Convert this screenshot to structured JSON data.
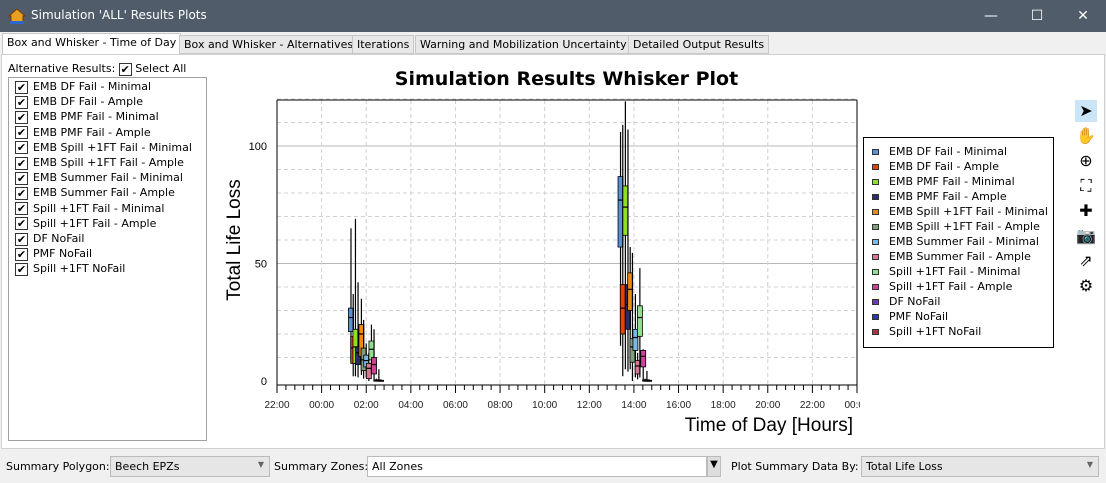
{
  "window": {
    "title": "Simulation 'ALL' Results Plots",
    "minimize": "—",
    "maximize": "☐",
    "close": "✕"
  },
  "tabs": [
    {
      "label": "Box and Whisker - Time of Day",
      "active": true
    },
    {
      "label": "Box and Whisker - Alternatives"
    },
    {
      "label": "Iterations"
    },
    {
      "label": "Warning and Mobilization Uncertainty"
    },
    {
      "label": "Detailed Output Results"
    }
  ],
  "left": {
    "label": "Alternative Results:",
    "select_all": "Select All",
    "items": [
      "EMB DF Fail - Minimal",
      "EMB DF Fail - Ample",
      "EMB PMF Fail - Minimal",
      "EMB PMF Fail - Ample",
      "EMB Spill +1FT Fail - Minimal",
      "EMB Spill +1FT Fail - Ample",
      "EMB Summer Fail - Minimal",
      "EMB Summer Fail - Ample",
      "Spill +1FT Fail - Minimal",
      "Spill +1FT Fail - Ample",
      "DF NoFail",
      "PMF NoFail",
      "Spill +1FT NoFail"
    ]
  },
  "toolbar": {
    "icons": [
      "pointer-icon",
      "pan-hand-icon",
      "zoom-in-icon",
      "zoom-extents-icon",
      "crosshair-plus-icon",
      "camera-icon",
      "export-icon",
      "settings-gear-icon"
    ],
    "glyphs": [
      "➤",
      "✋",
      "⊕",
      "⛶",
      "✚",
      "📷",
      "⇗",
      "⚙"
    ]
  },
  "bottom": {
    "polygon_label": "Summary Polygon:",
    "polygon_value": "Beech EPZs",
    "zones_label": "Summary Zones:",
    "zones_value": "All Zones",
    "plotby_label": "Plot Summary Data By:",
    "plotby_value": "Total Life Loss"
  },
  "chart_data": {
    "type": "box",
    "title": "Simulation Results Whisker Plot",
    "xlabel": "Time of Day [Hours]",
    "ylabel": "Total Life Loss",
    "xlim": [
      "22:00",
      "00:00 (+1 day)"
    ],
    "xticks": [
      "22:00",
      "00:00",
      "02:00",
      "04:00",
      "06:00",
      "08:00",
      "10:00",
      "12:00",
      "14:00",
      "16:00",
      "18:00",
      "20:00",
      "22:00",
      "00:00"
    ],
    "ylim": [
      0,
      120
    ],
    "yticks": [
      0,
      50,
      100
    ],
    "grid": true,
    "legend": "right",
    "series": [
      {
        "name": "EMB DF Fail - Minimal",
        "color": "#5b8fd6",
        "boxes": [
          {
            "time": "01:19",
            "min": 9,
            "q1": 21,
            "median": 27,
            "q3": 31,
            "max": 65
          },
          {
            "time": "13:24",
            "min": 15,
            "q1": 57,
            "median": 77,
            "q3": 87,
            "max": 106
          }
        ]
      },
      {
        "name": "EMB DF Fail - Ample",
        "color": "#e8400c",
        "boxes": [
          {
            "time": "01:25",
            "min": 2,
            "q1": 7.5,
            "median": 14,
            "q3": 19,
            "max": 37
          },
          {
            "time": "13:30",
            "min": 2,
            "q1": 20,
            "median": 31,
            "q3": 41,
            "max": 109
          }
        ]
      },
      {
        "name": "EMB PMF Fail - Minimal",
        "color": "#8ee020",
        "boxes": [
          {
            "time": "01:31",
            "min": 2,
            "q1": 7.5,
            "median": 14.5,
            "q3": 22,
            "max": 69
          },
          {
            "time": "13:37",
            "min": 5,
            "q1": 62,
            "median": 74,
            "q3": 83,
            "max": 119
          }
        ]
      },
      {
        "name": "EMB PMF Fail - Ample",
        "color": "#2e2a6e",
        "boxes": [
          {
            "time": "01:38",
            "min": 1.5,
            "q1": 7,
            "median": 12,
            "q3": 14.5,
            "max": 42
          },
          {
            "time": "13:44",
            "min": 4,
            "q1": 22,
            "median": 32.5,
            "q3": 41,
            "max": 107
          }
        ]
      },
      {
        "name": "EMB Spill +1FT Fail - Minimal",
        "color": "#f08a10",
        "boxes": [
          {
            "time": "01:47",
            "min": 2.5,
            "q1": 10.5,
            "median": 20,
            "q3": 24,
            "max": 35
          },
          {
            "time": "13:50",
            "min": 5,
            "q1": 30,
            "median": 39,
            "q3": 46,
            "max": 57
          }
        ]
      },
      {
        "name": "EMB Spill +1FT Fail - Ample",
        "color": "#7e9e7e",
        "boxes": [
          {
            "time": "01:53",
            "min": 1,
            "q1": 4.5,
            "median": 9,
            "q3": 14,
            "max": 26
          },
          {
            "time": "13:56",
            "min": 0,
            "q1": 8,
            "median": 14.5,
            "q3": 18,
            "max": 54.5
          }
        ]
      },
      {
        "name": "EMB Summer Fail - Minimal",
        "color": "#7ab8e8",
        "boxes": [
          {
            "time": "02:00",
            "min": 1.5,
            "q1": 6,
            "median": 8.7,
            "q3": 11,
            "max": 16
          },
          {
            "time": "14:04",
            "min": 1.5,
            "q1": 13,
            "median": 18.5,
            "q3": 22,
            "max": 37
          }
        ]
      },
      {
        "name": "EMB Summer Fail - Ample",
        "color": "#d87890",
        "boxes": [
          {
            "time": "02:07",
            "min": 0,
            "q1": 1,
            "median": 5.4,
            "q3": 7.5,
            "max": 12
          },
          {
            "time": "14:10",
            "min": 0.7,
            "q1": 3,
            "median": 6.4,
            "q3": 8.7,
            "max": 12
          }
        ]
      },
      {
        "name": "Spill +1FT Fail - Minimal",
        "color": "#90e090",
        "boxes": [
          {
            "time": "02:14",
            "min": 3,
            "q1": 9,
            "median": 13.5,
            "q3": 17,
            "max": 24
          },
          {
            "time": "14:16",
            "min": 1.5,
            "q1": 19,
            "median": 27,
            "q3": 32,
            "max": 48
          }
        ]
      },
      {
        "name": "Spill +1FT Fail - Ample",
        "color": "#d04098",
        "boxes": [
          {
            "time": "02:21",
            "min": 0.7,
            "q1": 3,
            "median": 7,
            "q3": 10,
            "max": 22
          },
          {
            "time": "14:25",
            "min": 0.7,
            "q1": 6,
            "median": 10.5,
            "q3": 13,
            "max": 13.5
          }
        ]
      },
      {
        "name": "DF NoFail",
        "color": "#6a3ab8",
        "boxes": [
          {
            "time": "02:27",
            "min": 0,
            "q1": 0,
            "median": 0,
            "q3": 0.5,
            "max": 1
          },
          {
            "time": "14:30",
            "min": 0,
            "q1": 0,
            "median": 0,
            "q3": 0.5,
            "max": 1
          }
        ]
      },
      {
        "name": "PMF NoFail",
        "color": "#2a3ab0",
        "boxes": [
          {
            "time": "02:34",
            "min": 0,
            "q1": 0,
            "median": 0,
            "q3": 0.5,
            "max": 5
          },
          {
            "time": "14:35",
            "min": 0,
            "q1": 0,
            "median": 0,
            "q3": 0.5,
            "max": 4.3
          }
        ]
      },
      {
        "name": "Spill +1FT NoFail",
        "color": "#b83040",
        "boxes": [
          {
            "time": "02:40",
            "min": 0,
            "q1": 0,
            "median": 0,
            "q3": 0.3,
            "max": 0.5
          },
          {
            "time": "14:41",
            "min": 0,
            "q1": 0,
            "median": 0,
            "q3": 0.3,
            "max": 0.5
          }
        ]
      }
    ]
  }
}
